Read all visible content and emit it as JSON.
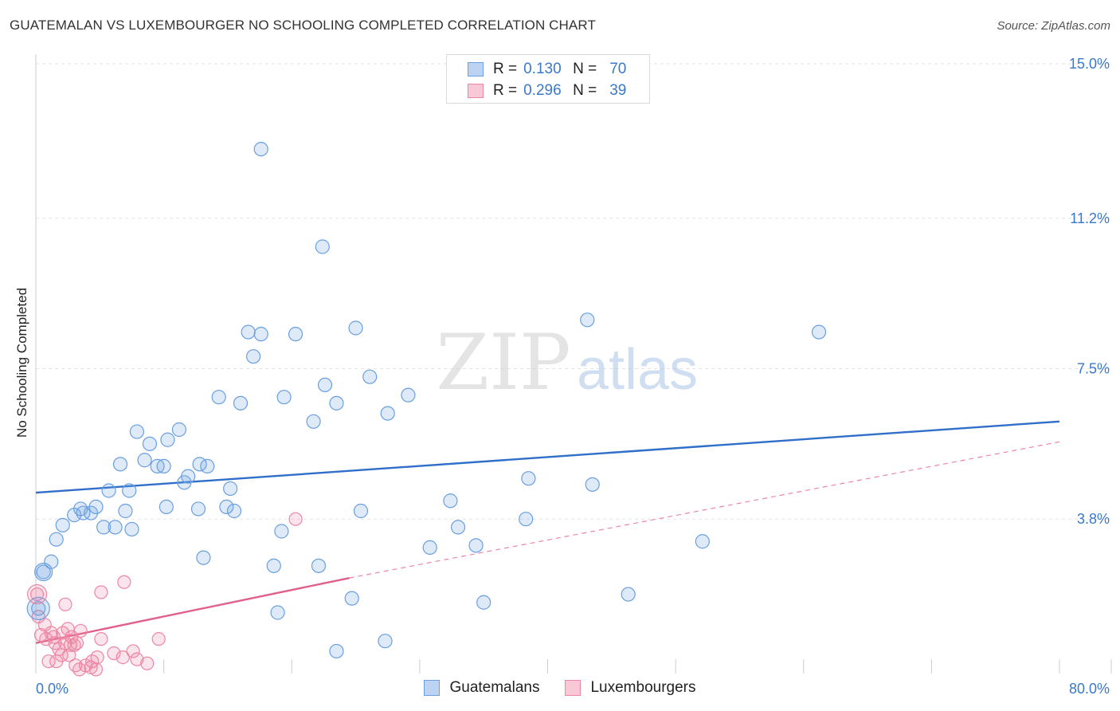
{
  "header": {
    "title": "GUATEMALAN VS LUXEMBOURGER NO SCHOOLING COMPLETED CORRELATION CHART",
    "source": "Source: ZipAtlas.com"
  },
  "watermark": {
    "part1": "ZIP",
    "part2": "atlas"
  },
  "legend": {
    "rows": [
      {
        "r_label": "R =",
        "r_value": "0.130",
        "n_label": "N =",
        "n_value": "70",
        "color": "#6a9fe0"
      },
      {
        "r_label": "R =",
        "r_value": "0.296",
        "n_label": "N =",
        "n_value": "39",
        "color": "#ec86a5"
      }
    ]
  },
  "chart_data": {
    "type": "scatter",
    "title": "GUATEMALAN VS LUXEMBOURGER NO SCHOOLING COMPLETED CORRELATION CHART",
    "ylabel": "No Schooling Completed",
    "xlabel": "",
    "xlim": [
      0,
      80
    ],
    "ylim": [
      0,
      15
    ],
    "y_ticks": [
      {
        "value": 3.8,
        "label": "3.8%"
      },
      {
        "value": 7.5,
        "label": "7.5%"
      },
      {
        "value": 11.2,
        "label": "11.2%"
      },
      {
        "value": 15.0,
        "label": "15.0%"
      }
    ],
    "x_tick_labels": [
      {
        "value": 0,
        "label": "0.0%"
      },
      {
        "value": 80,
        "label": "80.0%"
      }
    ],
    "grid": true,
    "legend_position": "top-center",
    "series": [
      {
        "name": "Guatemalans",
        "color": "#6a9fe0",
        "trend": {
          "x": [
            0,
            80
          ],
          "y": [
            4.45,
            6.2
          ]
        },
        "points": [
          [
            17.6,
            12.9
          ],
          [
            22.4,
            10.5
          ],
          [
            43.1,
            8.7
          ],
          [
            61.2,
            8.4
          ],
          [
            16.6,
            8.4
          ],
          [
            17.6,
            8.35
          ],
          [
            20.3,
            8.35
          ],
          [
            25.0,
            8.5
          ],
          [
            17.0,
            7.8
          ],
          [
            26.1,
            7.3
          ],
          [
            22.6,
            7.1
          ],
          [
            14.3,
            6.8
          ],
          [
            16.0,
            6.65
          ],
          [
            19.4,
            6.8
          ],
          [
            23.5,
            6.65
          ],
          [
            29.1,
            6.85
          ],
          [
            27.5,
            6.4
          ],
          [
            21.7,
            6.2
          ],
          [
            7.9,
            5.95
          ],
          [
            11.2,
            6.0
          ],
          [
            8.9,
            5.65
          ],
          [
            10.3,
            5.75
          ],
          [
            8.5,
            5.25
          ],
          [
            6.6,
            5.15
          ],
          [
            9.5,
            5.1
          ],
          [
            10.0,
            5.1
          ],
          [
            12.8,
            5.15
          ],
          [
            13.4,
            5.1
          ],
          [
            11.9,
            4.85
          ],
          [
            11.6,
            4.7
          ],
          [
            15.2,
            4.55
          ],
          [
            7.3,
            4.5
          ],
          [
            38.5,
            4.8
          ],
          [
            43.5,
            4.65
          ],
          [
            5.7,
            4.5
          ],
          [
            3.5,
            4.05
          ],
          [
            4.7,
            4.1
          ],
          [
            7.0,
            4.0
          ],
          [
            10.2,
            4.1
          ],
          [
            12.7,
            4.05
          ],
          [
            14.9,
            4.1
          ],
          [
            15.5,
            4.0
          ],
          [
            25.4,
            4.0
          ],
          [
            32.4,
            4.25
          ],
          [
            3.0,
            3.9
          ],
          [
            3.7,
            3.95
          ],
          [
            4.3,
            3.95
          ],
          [
            2.1,
            3.65
          ],
          [
            5.3,
            3.6
          ],
          [
            6.2,
            3.6
          ],
          [
            7.5,
            3.55
          ],
          [
            19.2,
            3.5
          ],
          [
            33.0,
            3.6
          ],
          [
            38.3,
            3.8
          ],
          [
            1.6,
            3.3
          ],
          [
            30.8,
            3.1
          ],
          [
            34.4,
            3.15
          ],
          [
            52.1,
            3.25
          ],
          [
            13.1,
            2.85
          ],
          [
            1.2,
            2.75
          ],
          [
            18.6,
            2.65
          ],
          [
            22.1,
            2.65
          ],
          [
            0.6,
            2.5
          ],
          [
            24.7,
            1.85
          ],
          [
            46.3,
            1.95
          ],
          [
            35.0,
            1.75
          ],
          [
            18.9,
            1.5
          ],
          [
            0.2,
            1.6
          ],
          [
            27.3,
            0.8
          ],
          [
            23.5,
            0.55
          ]
        ]
      },
      {
        "name": "Luxembourgers",
        "color": "#ec86a5",
        "trend_solid": {
          "x": [
            0,
            24.5
          ],
          "y": [
            0.75,
            2.35
          ]
        },
        "trend_dashed": {
          "x": [
            24.5,
            80
          ],
          "y": [
            2.35,
            5.7
          ]
        },
        "points": [
          [
            20.3,
            3.8
          ],
          [
            6.9,
            2.25
          ],
          [
            5.1,
            2.0
          ],
          [
            0.1,
            1.95
          ],
          [
            2.3,
            1.7
          ],
          [
            0.2,
            1.4
          ],
          [
            0.7,
            1.2
          ],
          [
            2.5,
            1.1
          ],
          [
            3.5,
            1.05
          ],
          [
            1.2,
            1.0
          ],
          [
            2.1,
            1.0
          ],
          [
            0.4,
            0.95
          ],
          [
            1.4,
            0.9
          ],
          [
            2.8,
            0.9
          ],
          [
            0.8,
            0.85
          ],
          [
            5.1,
            0.85
          ],
          [
            9.6,
            0.85
          ],
          [
            1.5,
            0.75
          ],
          [
            2.3,
            0.75
          ],
          [
            2.7,
            0.7
          ],
          [
            3.2,
            0.75
          ],
          [
            3.0,
            0.7
          ],
          [
            1.8,
            0.6
          ],
          [
            7.6,
            0.55
          ],
          [
            6.1,
            0.5
          ],
          [
            2.0,
            0.45
          ],
          [
            2.6,
            0.45
          ],
          [
            4.8,
            0.4
          ],
          [
            6.8,
            0.4
          ],
          [
            7.9,
            0.35
          ],
          [
            1.0,
            0.3
          ],
          [
            1.6,
            0.3
          ],
          [
            4.4,
            0.3
          ],
          [
            8.7,
            0.25
          ],
          [
            3.1,
            0.2
          ],
          [
            3.9,
            0.2
          ],
          [
            4.3,
            0.15
          ],
          [
            3.4,
            0.1
          ],
          [
            4.7,
            0.1
          ]
        ]
      }
    ]
  }
}
